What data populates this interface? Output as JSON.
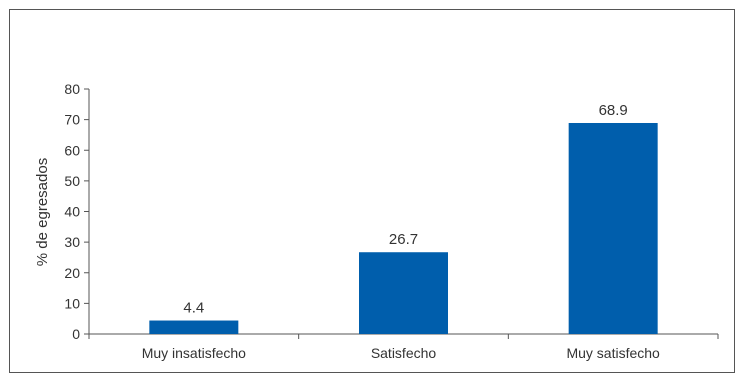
{
  "chart_data": {
    "type": "bar",
    "categories": [
      "Muy insatisfecho",
      "Satisfecho",
      "Muy satisfecho"
    ],
    "values": [
      4.4,
      26.7,
      68.9
    ],
    "value_labels": [
      "4.4",
      "26.7",
      "68.9"
    ],
    "title": "",
    "xlabel": "",
    "ylabel": "% de egresados",
    "ylim": [
      0,
      80
    ],
    "yticks": [
      0,
      10,
      20,
      30,
      40,
      50,
      60,
      70,
      80
    ],
    "grid": false,
    "legend": "none",
    "bar_color": "#005eac"
  }
}
